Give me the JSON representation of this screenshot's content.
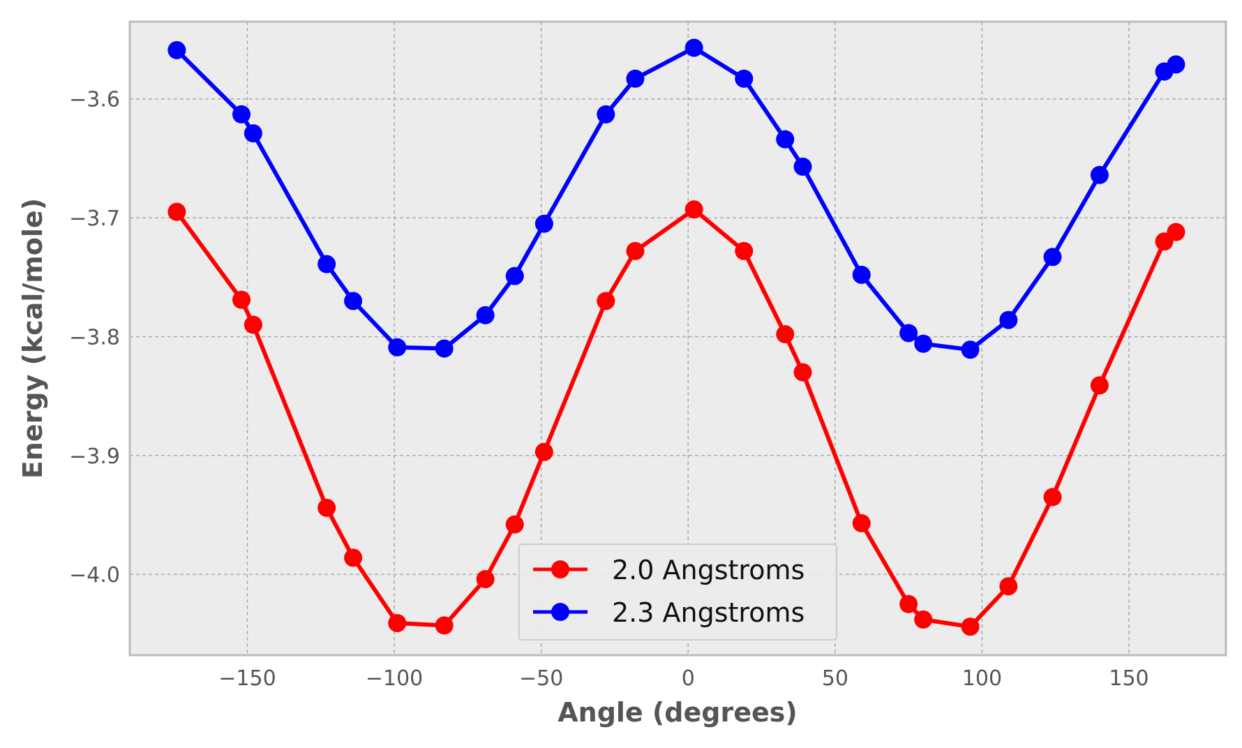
{
  "chart_data": {
    "type": "line",
    "title": "",
    "xlabel": "Angle (degrees)",
    "ylabel": "Energy (kcal/mole)",
    "xlim": [
      -190,
      183
    ],
    "ylim": [
      -4.068,
      -3.535
    ],
    "xticks": [
      -150,
      -100,
      -50,
      0,
      50,
      100,
      150
    ],
    "xtick_labels": [
      "−150",
      "−100",
      "−50",
      "0",
      "50",
      "100",
      "150"
    ],
    "yticks": [
      -3.6,
      -3.7,
      -3.8,
      -3.9,
      -4.0
    ],
    "ytick_labels": [
      "−3.6",
      "−3.7",
      "−3.8",
      "−3.9",
      "−4.0"
    ],
    "grid": true,
    "legend_position": "bottom-center",
    "colors": {
      "plot_background": "#ececec",
      "axis_border": "#bbbbbb",
      "grid": "#aaaaaa"
    },
    "series": [
      {
        "name": "2.0 Angstroms",
        "color": "#ff0000",
        "marker": "circle",
        "x": [
          -174,
          -152,
          -148,
          -123,
          -114,
          -99,
          -83,
          -69,
          -59,
          -49,
          -28,
          -18,
          2,
          19,
          33,
          39,
          59,
          75,
          80,
          96,
          109,
          124,
          140,
          162,
          166
        ],
        "y": [
          -3.695,
          -3.769,
          -3.79,
          -3.944,
          -3.986,
          -4.041,
          -4.043,
          -4.004,
          -3.958,
          -3.897,
          -3.77,
          -3.728,
          -3.693,
          -3.728,
          -3.798,
          -3.83,
          -3.957,
          -4.025,
          -4.038,
          -4.044,
          -4.01,
          -3.935,
          -3.841,
          -3.72,
          -3.712
        ]
      },
      {
        "name": "2.3 Angstroms",
        "color": "#0000ff",
        "marker": "circle",
        "x": [
          -174,
          -152,
          -148,
          -123,
          -114,
          -99,
          -83,
          -69,
          -59,
          -49,
          -28,
          -18,
          2,
          19,
          33,
          39,
          59,
          75,
          80,
          96,
          109,
          124,
          140,
          162,
          166
        ],
        "y": [
          -3.559,
          -3.613,
          -3.629,
          -3.739,
          -3.77,
          -3.809,
          -3.81,
          -3.782,
          -3.749,
          -3.705,
          -3.613,
          -3.583,
          -3.557,
          -3.583,
          -3.634,
          -3.657,
          -3.748,
          -3.797,
          -3.806,
          -3.811,
          -3.786,
          -3.733,
          -3.664,
          -3.577,
          -3.571
        ]
      }
    ]
  }
}
